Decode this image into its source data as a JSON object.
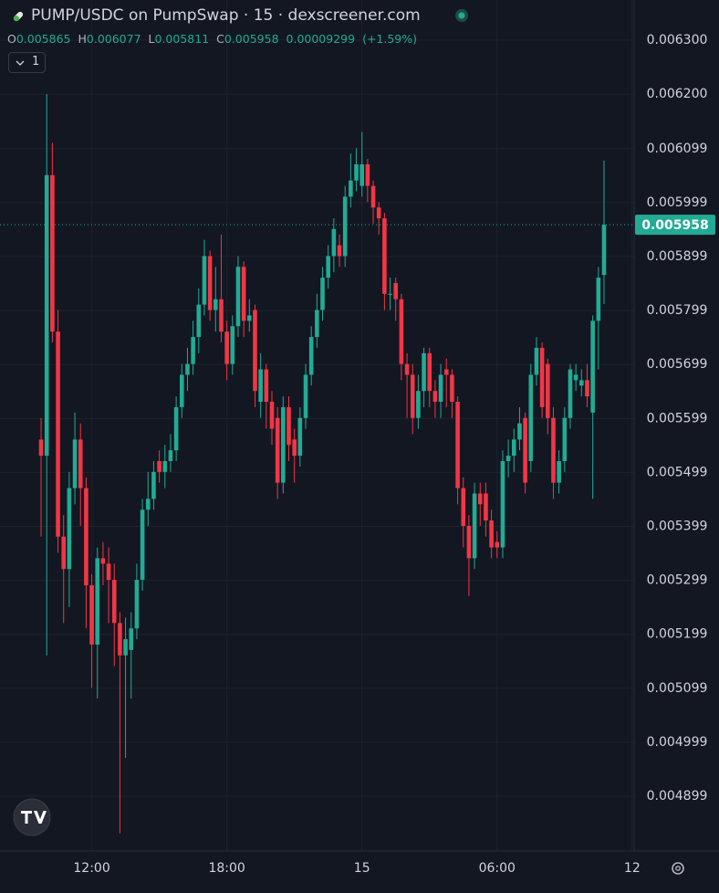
{
  "chart_data": {
    "type": "candlestick",
    "title": "PUMP/USDC on PumpSwap · 15 · dexscreener.com",
    "legend_labels": [
      "O",
      "H",
      "L",
      "C"
    ],
    "change": 9.299e-05,
    "change_pct": 1.59,
    "change_pct_label": "(+1.59%)",
    "indicator_toggle": "1",
    "up_color": "#22ab94",
    "down_color": "#f23645",
    "grid": true,
    "categories": [
      null,
      null,
      null,
      null,
      null,
      null,
      null,
      null,
      null,
      null,
      null,
      null,
      null,
      null,
      null,
      null,
      null,
      null,
      null,
      null,
      null,
      null,
      null,
      null,
      null,
      null,
      null,
      null,
      null,
      null,
      null,
      null,
      null,
      null,
      null,
      null,
      null,
      null,
      null,
      null,
      null,
      null,
      null,
      null,
      null,
      null,
      null,
      null,
      null,
      null,
      null,
      null,
      null,
      null,
      null,
      null,
      null,
      null,
      null,
      null,
      null,
      null,
      null,
      null,
      null,
      null,
      null,
      null,
      null,
      null,
      null,
      null,
      null,
      null,
      null,
      null,
      null,
      null,
      null,
      null,
      null,
      null,
      null,
      null,
      null,
      null,
      null,
      null,
      null,
      null,
      null,
      null,
      null,
      null,
      null,
      null,
      null,
      null,
      null,
      null,
      null
    ],
    "open": [
      0.00556,
      0.00553,
      0.00605,
      0.00576,
      0.00538,
      0.00532,
      0.00547,
      0.00556,
      0.00547,
      0.00529,
      0.00518,
      0.00534,
      0.00533,
      0.0053,
      0.00522,
      0.00516,
      0.00517,
      0.00521,
      0.0053,
      0.00543,
      0.00545,
      0.00552,
      0.0055,
      0.00552,
      0.00554,
      0.00562,
      0.00568,
      0.0057,
      0.00575,
      0.00581,
      0.0059,
      0.0058,
      0.00582,
      0.00576,
      0.0057,
      0.00577,
      0.00588,
      0.00578,
      0.0058,
      0.00563,
      0.00569,
      0.00563,
      0.0056,
      0.00548,
      0.00562,
      0.00556,
      0.00553,
      0.0056,
      0.00568,
      0.00575,
      0.0058,
      0.00586,
      0.0059,
      0.00592,
      0.0059,
      0.00601,
      0.00604,
      0.00603,
      0.00607,
      0.00603,
      0.00599,
      0.00597,
      0.00583,
      0.00585,
      0.00582,
      0.0057,
      0.00568,
      0.0056,
      0.00565,
      0.00572,
      0.00565,
      0.00563,
      0.00569,
      0.00568,
      0.00563,
      0.00547,
      0.0054,
      0.00534,
      0.00546,
      0.00546,
      0.00541,
      0.00537,
      0.00536,
      0.00552,
      0.00553,
      0.00556,
      0.0056,
      0.00552,
      0.00568,
      0.00573,
      0.0057,
      0.0056,
      0.00548,
      0.00552,
      0.0056,
      0.00567,
      0.00566,
      0.00567,
      0.00561,
      0.00578,
      0.005865
    ],
    "high": [
      0.0056,
      0.0062,
      0.00611,
      0.0058,
      0.00542,
      0.0055,
      0.00561,
      0.00559,
      0.00549,
      0.00531,
      0.00536,
      0.00537,
      0.00536,
      0.00533,
      0.00524,
      0.00523,
      0.00524,
      0.00533,
      0.00545,
      0.0055,
      0.00552,
      0.00554,
      0.00555,
      0.00557,
      0.00564,
      0.0057,
      0.00573,
      0.00578,
      0.00584,
      0.00593,
      0.00591,
      0.00588,
      0.00594,
      0.00578,
      0.00579,
      0.0059,
      0.00589,
      0.00582,
      0.00581,
      0.00572,
      0.0057,
      0.00565,
      0.00562,
      0.00564,
      0.00564,
      0.00558,
      0.00562,
      0.0057,
      0.00577,
      0.00583,
      0.00588,
      0.00592,
      0.00597,
      0.00594,
      0.00603,
      0.00609,
      0.0061,
      0.00613,
      0.00608,
      0.00604,
      0.006,
      0.00598,
      0.00586,
      0.00586,
      0.00583,
      0.00572,
      0.0057,
      0.00568,
      0.00573,
      0.00573,
      0.00567,
      0.0057,
      0.00571,
      0.00569,
      0.00564,
      0.00549,
      0.00542,
      0.00548,
      0.00548,
      0.00548,
      0.00543,
      0.00539,
      0.00554,
      0.00556,
      0.00558,
      0.00562,
      0.00561,
      0.0057,
      0.00575,
      0.00574,
      0.00571,
      0.00562,
      0.00554,
      0.00562,
      0.0057,
      0.0057,
      0.00569,
      0.0057,
      0.00579,
      0.00588,
      0.006077
    ],
    "low": [
      0.00538,
      0.00516,
      0.00574,
      0.00535,
      0.00522,
      0.00525,
      0.00544,
      0.0054,
      0.00521,
      0.0051,
      0.00508,
      0.00529,
      0.00522,
      0.00514,
      0.00483,
      0.00497,
      0.00508,
      0.00519,
      0.00528,
      0.0054,
      0.00543,
      0.00548,
      0.00547,
      0.0055,
      0.00552,
      0.0056,
      0.00565,
      0.00568,
      0.00572,
      0.00579,
      0.00578,
      0.00576,
      0.00574,
      0.00567,
      0.00568,
      0.00575,
      0.00575,
      0.00576,
      0.00562,
      0.0056,
      0.00558,
      0.00555,
      0.00545,
      0.00546,
      0.00552,
      0.00548,
      0.00551,
      0.00558,
      0.00566,
      0.00573,
      0.00578,
      0.00584,
      0.00587,
      0.00588,
      0.00588,
      0.00599,
      0.00602,
      0.00601,
      0.006,
      0.00596,
      0.00594,
      0.0058,
      0.0058,
      0.00578,
      0.00567,
      0.0056,
      0.00557,
      0.00558,
      0.00562,
      0.00562,
      0.0056,
      0.0056,
      0.00562,
      0.0056,
      0.00544,
      0.00536,
      0.00527,
      0.00532,
      0.0054,
      0.00538,
      0.00534,
      0.00534,
      0.00534,
      0.00549,
      0.0055,
      0.00554,
      0.00546,
      0.0055,
      0.00566,
      0.0056,
      0.00557,
      0.00545,
      0.00546,
      0.0055,
      0.00558,
      0.00565,
      0.00564,
      0.00562,
      0.00545,
      0.00569,
      0.005811
    ],
    "close": [
      0.00553,
      0.00605,
      0.00576,
      0.00538,
      0.00532,
      0.00547,
      0.00556,
      0.00547,
      0.00529,
      0.00518,
      0.00534,
      0.00533,
      0.0053,
      0.00522,
      0.00516,
      0.00519,
      0.00521,
      0.0053,
      0.00543,
      0.00545,
      0.0055,
      0.0055,
      0.00552,
      0.00554,
      0.00562,
      0.00568,
      0.0057,
      0.00575,
      0.00581,
      0.0059,
      0.0058,
      0.00582,
      0.00576,
      0.0057,
      0.00577,
      0.00588,
      0.00578,
      0.00579,
      0.00565,
      0.00569,
      0.00563,
      0.00558,
      0.00548,
      0.00562,
      0.00555,
      0.00553,
      0.0056,
      0.00568,
      0.00575,
      0.0058,
      0.00586,
      0.0059,
      0.00595,
      0.0059,
      0.00601,
      0.00604,
      0.00607,
      0.00607,
      0.00603,
      0.00599,
      0.00597,
      0.00583,
      0.00583,
      0.00582,
      0.0057,
      0.00568,
      0.0056,
      0.00565,
      0.00572,
      0.00565,
      0.00563,
      0.00568,
      0.00568,
      0.00563,
      0.00547,
      0.0054,
      0.00534,
      0.00546,
      0.00544,
      0.00541,
      0.00536,
      0.00536,
      0.00552,
      0.00553,
      0.00556,
      0.00559,
      0.00548,
      0.00568,
      0.00573,
      0.00562,
      0.0056,
      0.00548,
      0.00552,
      0.0056,
      0.00569,
      0.00568,
      0.00567,
      0.00564,
      0.00578,
      0.00586,
      0.005958
    ],
    "xlim": [
      -7.3,
      105.35
    ],
    "xticks": [
      {
        "value": 9,
        "label": "12:00"
      },
      {
        "value": 33,
        "label": "18:00"
      },
      {
        "value": 57,
        "label": "15"
      },
      {
        "value": 81,
        "label": "06:00"
      },
      {
        "value": 105,
        "label": "12"
      }
    ],
    "ylim": [
      0.0047975,
      0.0063745
    ],
    "yticks": [
      {
        "value": 0.0063,
        "label": "0.006300"
      },
      {
        "value": 0.0062,
        "label": "0.006200"
      },
      0.006099,
      0.005999,
      0.005899,
      0.005799,
      0.005699,
      0.005599,
      0.005499,
      0.005399,
      0.005299,
      0.005199,
      0.005099,
      0.004999,
      0.004899
    ]
  }
}
